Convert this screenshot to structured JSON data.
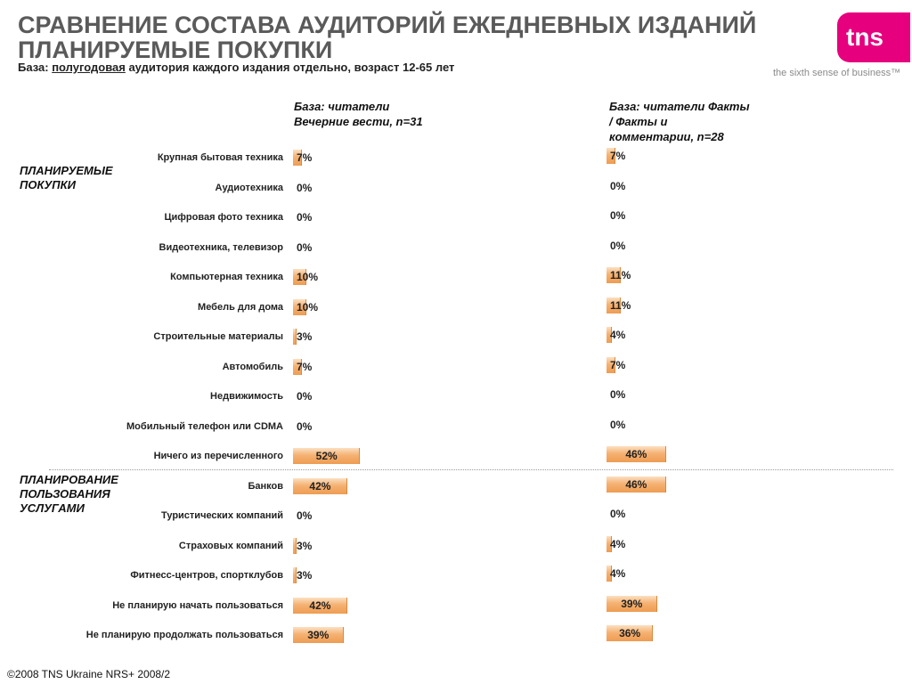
{
  "header": {
    "title": "СРАВНЕНИЕ СОСТАВА АУДИТОРИЙ ЕЖЕДНЕВНЫХ ИЗДАНИЙ ПЛАНИРУЕМЫЕ ПОКУПКИ",
    "base_prefix": "База: ",
    "base_underlined": "полугодовая",
    "base_rest": " аудитория каждого издания отдельно, возраст 12-65 лет"
  },
  "logo": {
    "text": "tns",
    "tagline": "the sixth sense of business™",
    "color": "#e6007e"
  },
  "sections": [
    {
      "label": "ПЛАНИРУЕМЫЕ ПОКУПКИ"
    },
    {
      "label": "ПЛАНИРОВАНИЕ ПОЛЬЗОВАНИЯ УСЛУГАМИ"
    }
  ],
  "footer": "©2008 TNS Ukraine  NRS+ 2008/2",
  "chart_data": {
    "type": "bar",
    "orientation": "horizontal",
    "bar_color": "#f0a25a",
    "categories": [
      "Крупная бытовая техника",
      "Аудиотехника",
      "Цифровая фото техника",
      "Видеотехника, телевизор",
      "Компьютерная техника",
      "Мебель для дома",
      "Строительные материалы",
      "Автомобиль",
      "Недвижимость",
      "Мобильный телефон или CDMA",
      "Ничего из перечисленного",
      "Банков",
      "Туристических компаний",
      "Страховых компаний",
      "Фитнесс-центров, спортклубов",
      "Не планирую начать пользоваться",
      "Не планирую продолжать пользоваться"
    ],
    "series": [
      {
        "name": "База: читатели Вечерние вести, n=31",
        "values": [
          7,
          0,
          0,
          0,
          10,
          10,
          3,
          7,
          0,
          0,
          52,
          42,
          0,
          3,
          3,
          42,
          39
        ]
      },
      {
        "name": "База: читатели Факты / Факты и комментарии, n=28",
        "values": [
          7,
          0,
          0,
          0,
          11,
          11,
          4,
          7,
          0,
          0,
          46,
          46,
          0,
          4,
          4,
          39,
          36
        ]
      }
    ],
    "value_suffix": "%"
  }
}
